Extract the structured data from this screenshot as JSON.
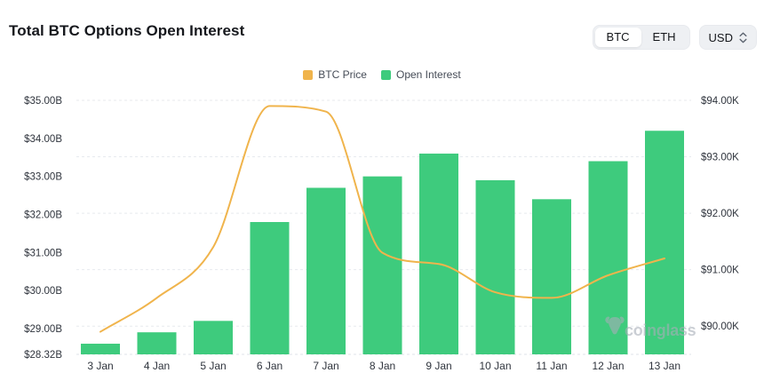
{
  "header": {
    "title": "Total BTC Options Open Interest",
    "toggle": {
      "btc": "BTC",
      "eth": "ETH",
      "selected": "BTC"
    },
    "currency": "USD"
  },
  "watermark": {
    "text": "coinglass"
  },
  "colors": {
    "bar_green": "#3ECB7D",
    "line_amber": "#F0B44C",
    "grid": "#E7EAEE",
    "baseline": "#DFE3E8",
    "axis_text": "#2F343D",
    "control_bg": "#EEF0F3",
    "watermark_gray": "#A8AEB8"
  },
  "chart_data": {
    "type": "bar",
    "title": "Total BTC Options Open Interest",
    "categories": [
      "3 Jan",
      "4 Jan",
      "5 Jan",
      "6 Jan",
      "7 Jan",
      "8 Jan",
      "9 Jan",
      "10 Jan",
      "11 Jan",
      "12 Jan",
      "13 Jan"
    ],
    "series": [
      {
        "name": "BTC Price",
        "type": "line",
        "yaxis": "right",
        "color": "#F0B44C",
        "unit": "$K",
        "values": [
          89.9,
          90.5,
          91.4,
          93.9,
          93.8,
          91.3,
          91.1,
          90.6,
          90.5,
          90.9,
          91.2
        ]
      },
      {
        "name": "Open Interest",
        "type": "bar",
        "yaxis": "left",
        "color": "#3ECB7D",
        "unit": "$B",
        "values": [
          28.6,
          28.9,
          29.2,
          31.8,
          32.7,
          33.0,
          33.6,
          32.9,
          32.4,
          33.4,
          34.2
        ]
      }
    ],
    "left_axis": {
      "min": 28.32,
      "max": 35,
      "ticks": [
        {
          "label": "$35.00B",
          "value": 35
        },
        {
          "label": "$34.00B",
          "value": 34
        },
        {
          "label": "$33.00B",
          "value": 33
        },
        {
          "label": "$32.00B",
          "value": 32
        },
        {
          "label": "$31.00B",
          "value": 31
        },
        {
          "label": "$30.00B",
          "value": 30
        },
        {
          "label": "$29.00B",
          "value": 29
        },
        {
          "label": "$28.32B",
          "value": 28.32
        }
      ]
    },
    "right_axis": {
      "min": 89.5,
      "max": 94,
      "ticks": [
        {
          "label": "$94.00K",
          "value": 94
        },
        {
          "label": "$93.00K",
          "value": 93
        },
        {
          "label": "$92.00K",
          "value": 92
        },
        {
          "label": "$91.00K",
          "value": 91
        },
        {
          "label": "$90.00K",
          "value": 90
        }
      ]
    },
    "legend_position": "top-center",
    "grid": "dashed-horizontal"
  }
}
